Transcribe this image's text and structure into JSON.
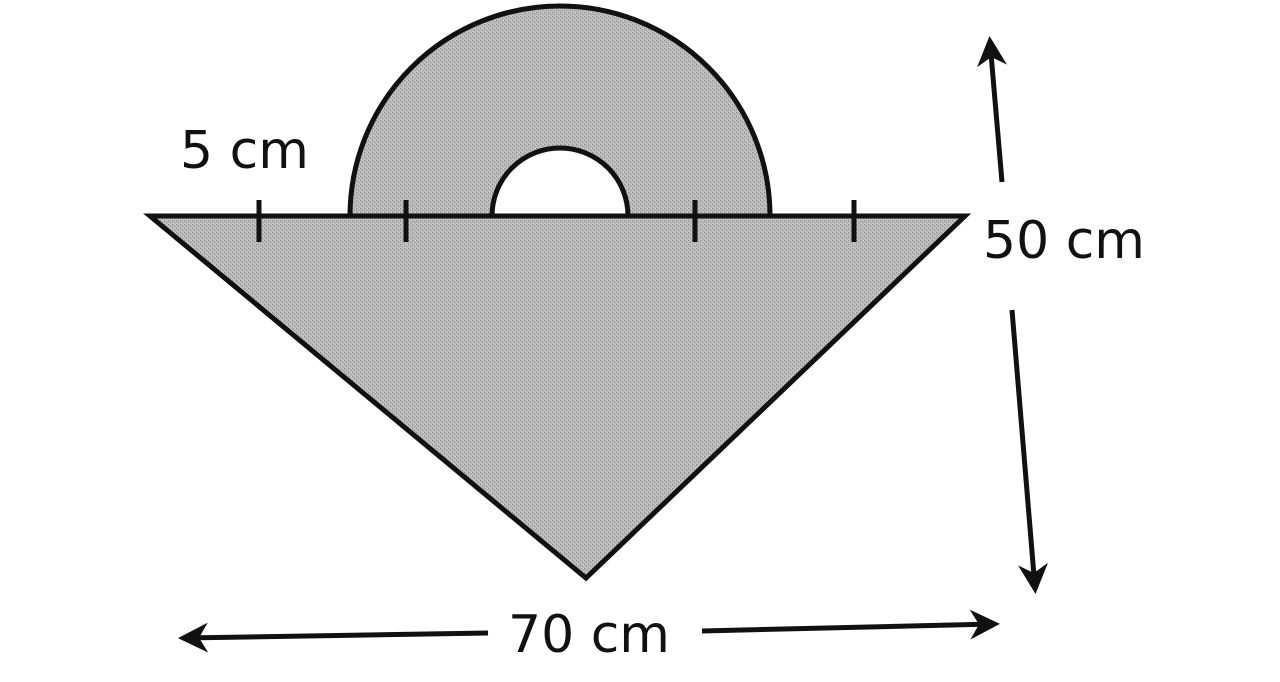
{
  "labels": {
    "band_width": "5 cm",
    "height": "50 cm",
    "width": "70 cm"
  },
  "colors": {
    "stroke": "#111111",
    "fill": "#b4b4b4",
    "background": "#ffffff"
  }
}
